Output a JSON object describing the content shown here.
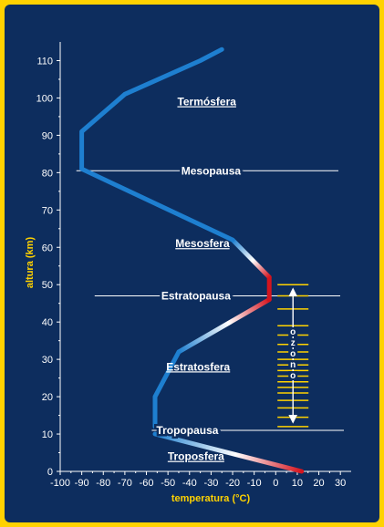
{
  "chart_data": {
    "type": "line",
    "xlabel": "temperatura (°C)",
    "ylabel": "altura (km)",
    "xlim": [
      -100,
      35
    ],
    "ylim": [
      0,
      115
    ],
    "x_ticks": [
      -100,
      -90,
      -80,
      -70,
      -60,
      -50,
      -40,
      -30,
      -20,
      -10,
      0,
      10,
      20,
      30
    ],
    "y_ticks": [
      0,
      10,
      20,
      30,
      40,
      50,
      60,
      70,
      80,
      90,
      100,
      110
    ],
    "series": [
      {
        "points": [
          {
            "x": 12,
            "y": 0
          },
          {
            "x": -56,
            "y": 10
          },
          {
            "x": -56,
            "y": 12
          },
          {
            "x": -56,
            "y": 20
          },
          {
            "x": -45,
            "y": 32
          },
          {
            "x": -3,
            "y": 46
          },
          {
            "x": -3,
            "y": 47
          },
          {
            "x": -3,
            "y": 52
          },
          {
            "x": -20,
            "y": 62
          },
          {
            "x": -90,
            "y": 81
          },
          {
            "x": -90,
            "y": 91
          },
          {
            "x": -70,
            "y": 101
          },
          {
            "x": -35,
            "y": 110
          },
          {
            "x": -25,
            "y": 113
          }
        ]
      }
    ],
    "boundaries": [
      {
        "label": "Tropopausa",
        "y": 11
      },
      {
        "label": "Estratopausa",
        "y": 47
      },
      {
        "label": "Mesopausa",
        "y": 80.5
      }
    ],
    "layer_labels": [
      {
        "label": "Troposfera",
        "x": -37,
        "y": 4
      },
      {
        "label": "Estratosfera",
        "x": -36,
        "y": 28
      },
      {
        "label": "Mesosfera",
        "x": -34,
        "y": 61
      },
      {
        "label": "Termósfera",
        "x": -32,
        "y": 99
      }
    ],
    "ozone": {
      "label": "ozono",
      "x": 8,
      "y_range": [
        12,
        50
      ],
      "band_levels": [
        12,
        14.5,
        17,
        19,
        21,
        22.5,
        24,
        25.5,
        27,
        28.5,
        30,
        32,
        34,
        36.5,
        39,
        43.5,
        47,
        50
      ]
    },
    "colors": {
      "background": "#0d2d5e",
      "border": "#ffd200",
      "line": "#1e7fd0",
      "warm": "#d4141e",
      "ozone_bands": "#ffd200"
    }
  }
}
